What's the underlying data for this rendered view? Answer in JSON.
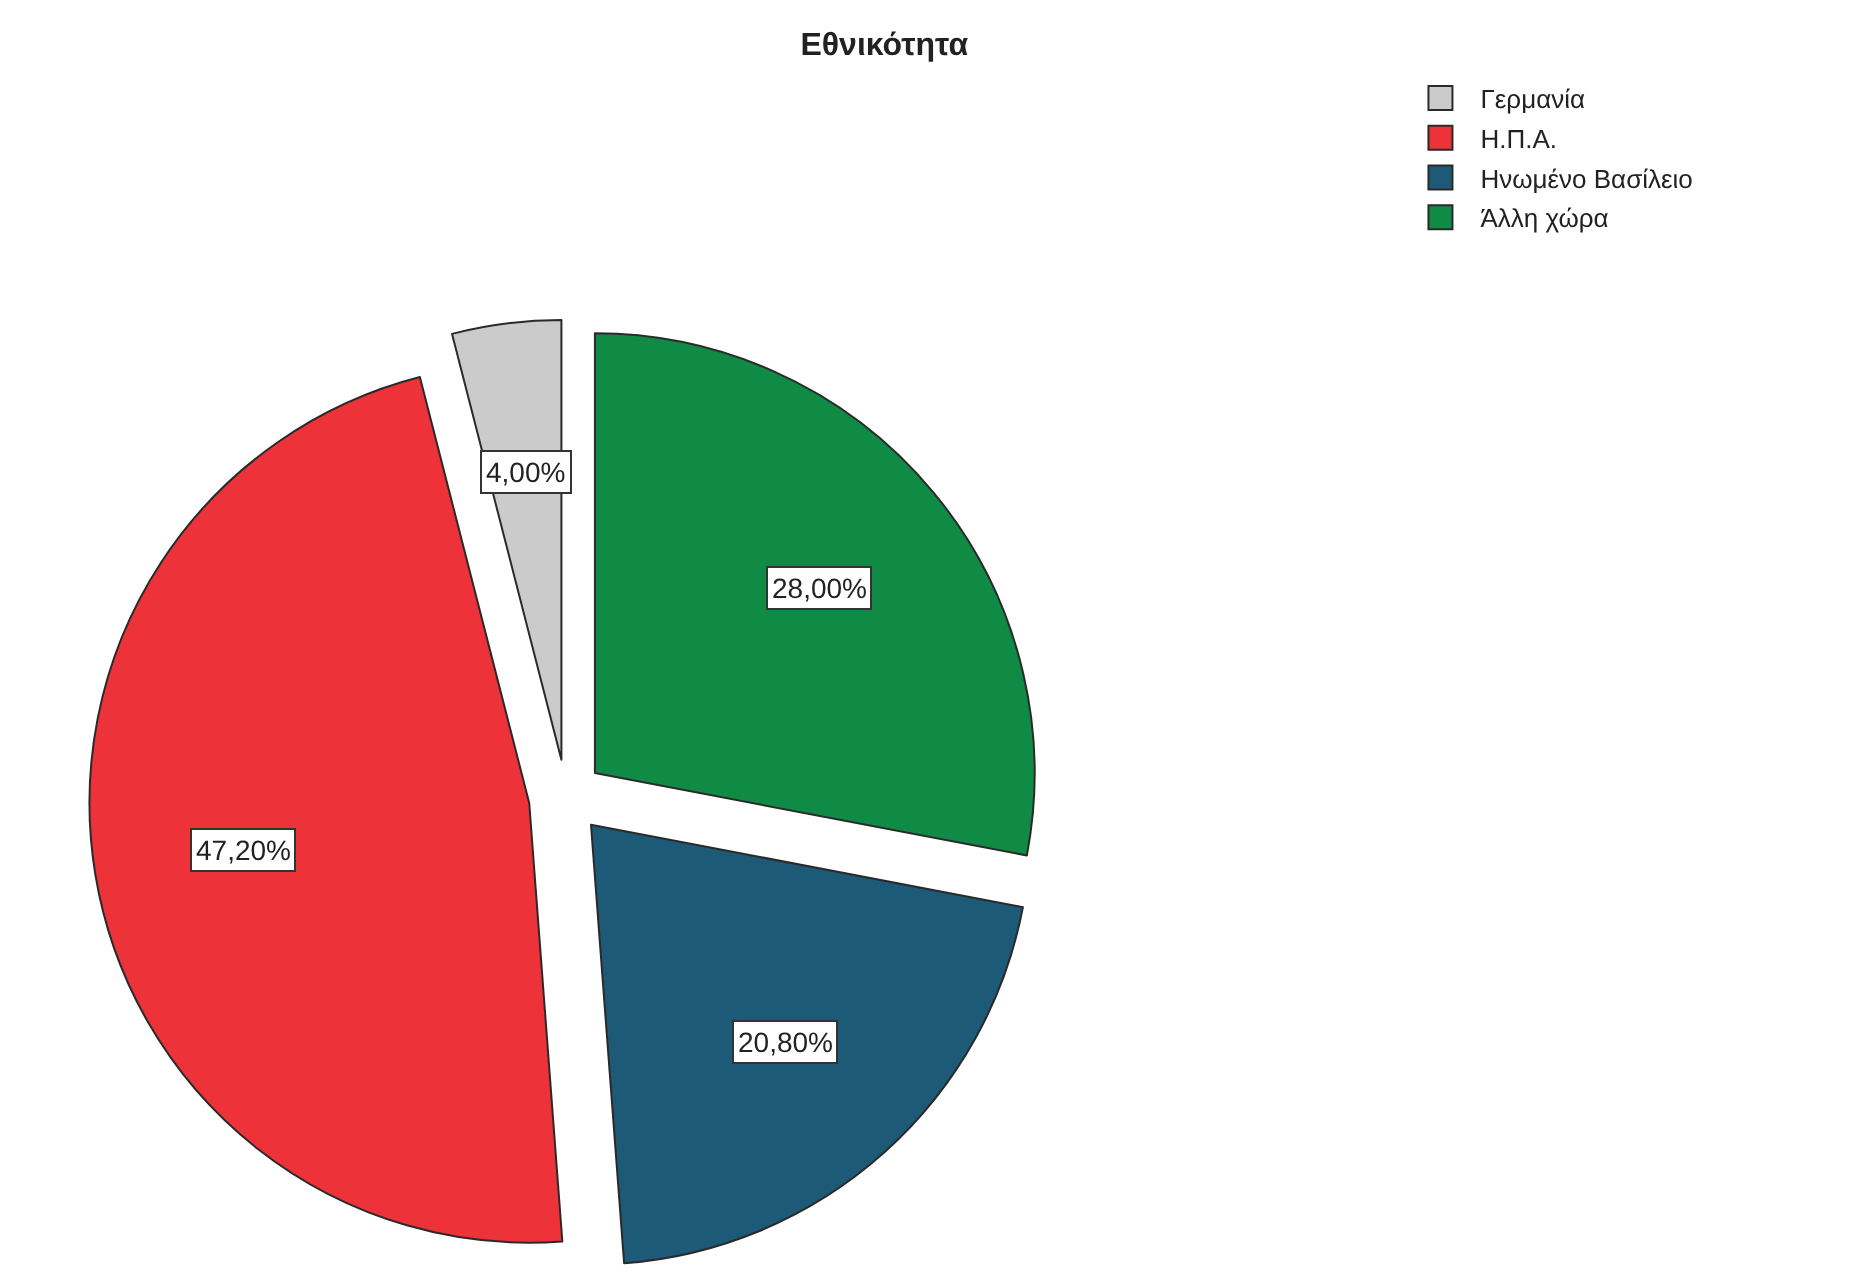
{
  "chart_data": {
    "type": "pie",
    "title": "Εθνικότητα",
    "categories": [
      "Γερμανία",
      "Η.Π.Α.",
      "Ηνωμένο Βασίλειο",
      "Άλλη χώρα"
    ],
    "values": [
      4.0,
      47.2,
      20.8,
      28.0
    ],
    "colors": [
      "#cbcbcb",
      "#ee3239",
      "#1d5a77",
      "#108b46"
    ],
    "value_labels": [
      "4,00%",
      "47,20%",
      "20,80%",
      "28,00%"
    ],
    "legend": "top right"
  }
}
